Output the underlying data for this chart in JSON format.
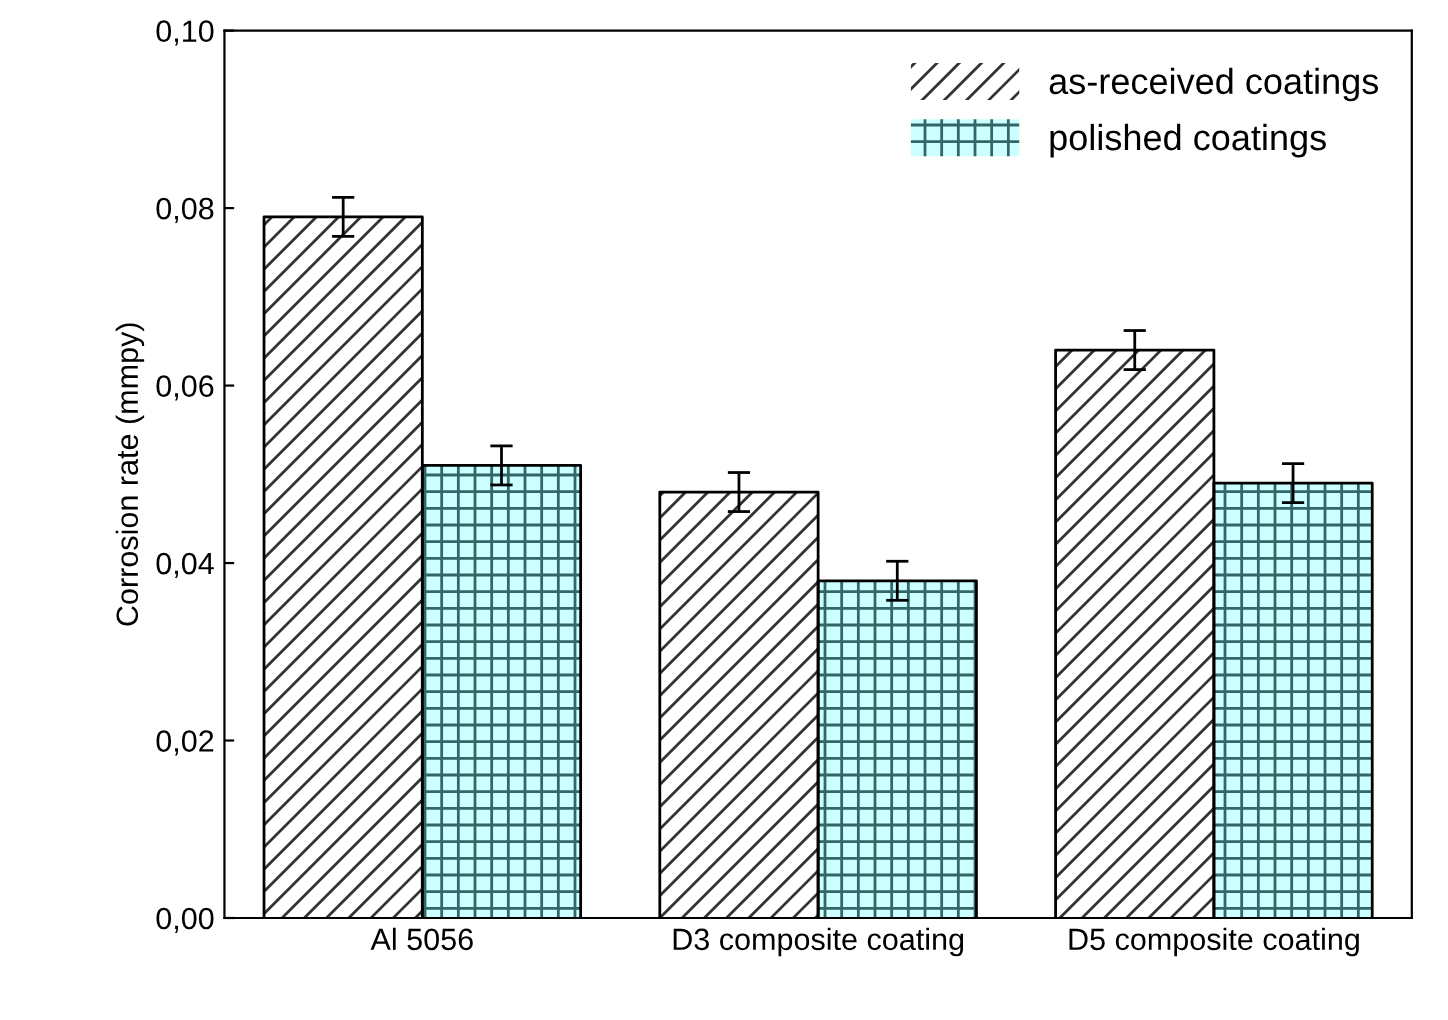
{
  "chart_data": {
    "type": "bar",
    "ylabel": "Corrosion rate (mmpy)",
    "categories": [
      "Al 5056",
      "D3 composite coating",
      "D5 composite coating"
    ],
    "series": [
      {
        "name": "as-received coatings",
        "color": "#ffffff",
        "values": [
          0.079,
          0.048,
          0.064
        ],
        "errors": [
          0.0022,
          0.0022,
          0.0022
        ]
      },
      {
        "name": "polished coatings",
        "color": "#ccffff",
        "values": [
          0.051,
          0.038,
          0.049
        ],
        "errors": [
          0.0022,
          0.0022,
          0.0022
        ]
      }
    ],
    "ylim": [
      0,
      0.1
    ],
    "yticks": [
      {
        "value": 0,
        "label": "0,00"
      },
      {
        "value": 0.02,
        "label": "0,02"
      },
      {
        "value": 0.04,
        "label": "0,04"
      },
      {
        "value": 0.06,
        "label": "0,06"
      },
      {
        "value": 0.08,
        "label": "0,08"
      },
      {
        "value": 0.1,
        "label": "0,10"
      }
    ],
    "grid": false,
    "legend": "top right"
  }
}
